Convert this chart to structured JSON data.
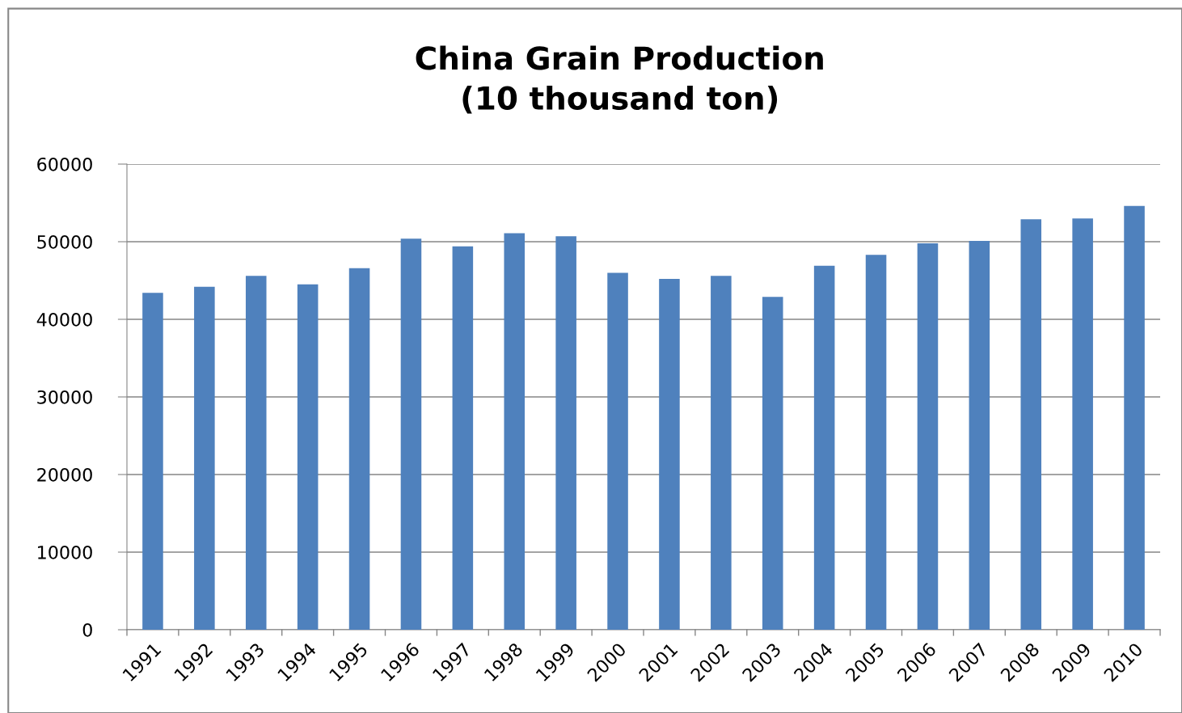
{
  "chart_data": {
    "type": "bar",
    "title": "China Grain Production\n(10 thousand ton)",
    "categories": [
      "1991",
      "1992",
      "1993",
      "1994",
      "1995",
      "1996",
      "1997",
      "1998",
      "1999",
      "2000",
      "2001",
      "2002",
      "2003",
      "2004",
      "2005",
      "2006",
      "2007",
      "2008",
      "2009",
      "2010"
    ],
    "values": [
      43400,
      44200,
      45600,
      44500,
      46600,
      50400,
      49400,
      51100,
      50700,
      46000,
      45200,
      45600,
      42900,
      46900,
      48300,
      49800,
      50100,
      52900,
      53000,
      54600
    ],
    "color": "#4f81bd",
    "ylim": [
      0,
      60000
    ],
    "yticks": [
      0,
      10000,
      20000,
      30000,
      40000,
      50000,
      60000
    ],
    "grid": "y",
    "legend": false
  }
}
